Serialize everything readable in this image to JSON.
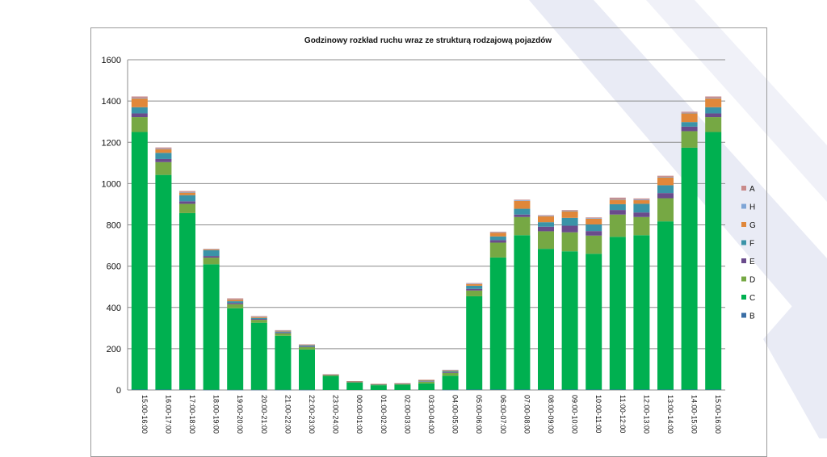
{
  "chart_data": {
    "type": "bar",
    "stacked": true,
    "title": "Godzinowy rozkład ruchu wraz ze strukturą rodzajową pojazdów",
    "ylim": [
      0,
      1600
    ],
    "yticks": [
      0,
      200,
      400,
      600,
      800,
      1000,
      1200,
      1400,
      1600
    ],
    "grid": true,
    "legend_position": "right",
    "categories": [
      "15:00-16:00",
      "16:00-17:00",
      "17:00-18:00",
      "18:00-19:00",
      "19:00-20:00",
      "20:00-21:00",
      "21:00-22:00",
      "22:00-23:00",
      "23:00-24:00",
      "00:00-01:00",
      "01:00-02:00",
      "02:00-03:00",
      "03:00-04:00",
      "04:00-05:00",
      "05:00-06:00",
      "06:00-07:00",
      "07:00-08:00",
      "08:00-09:00",
      "09:00-10:00",
      "10:00-11:00",
      "11:00-12:00",
      "12:00-13:00",
      "13:00-14:00",
      "14:00-15:00",
      "15:00-16:00"
    ],
    "series": [
      {
        "name": "B",
        "color": "#3a6ea5",
        "values": [
          2,
          2,
          2,
          1,
          1,
          1,
          1,
          1,
          0,
          0,
          0,
          0,
          0,
          1,
          2,
          2,
          2,
          2,
          2,
          2,
          2,
          2,
          2,
          2,
          2
        ]
      },
      {
        "name": "C",
        "color": "#00b050",
        "values": [
          1248,
          1040,
          855,
          608,
          395,
          325,
          262,
          195,
          68,
          36,
          23,
          26,
          32,
          68,
          452,
          640,
          748,
          682,
          670,
          658,
          740,
          748,
          815,
          1172,
          1248
        ]
      },
      {
        "name": "D",
        "color": "#76a844",
        "values": [
          72,
          62,
          45,
          32,
          20,
          14,
          12,
          12,
          4,
          3,
          3,
          3,
          8,
          14,
          28,
          72,
          88,
          85,
          92,
          88,
          108,
          88,
          112,
          80,
          72
        ]
      },
      {
        "name": "E",
        "color": "#6a4b8c",
        "values": [
          18,
          15,
          12,
          8,
          6,
          4,
          4,
          3,
          1,
          1,
          1,
          1,
          2,
          3,
          8,
          12,
          12,
          22,
          32,
          22,
          22,
          22,
          25,
          22,
          18
        ]
      },
      {
        "name": "F",
        "color": "#3a93a8",
        "values": [
          30,
          30,
          30,
          28,
          8,
          5,
          4,
          4,
          1,
          1,
          1,
          1,
          3,
          5,
          15,
          18,
          28,
          22,
          38,
          32,
          28,
          42,
          38,
          22,
          30
        ]
      },
      {
        "name": "G",
        "color": "#e0873a",
        "values": [
          42,
          18,
          12,
          4,
          8,
          5,
          3,
          3,
          1,
          1,
          1,
          1,
          3,
          4,
          8,
          18,
          38,
          28,
          32,
          28,
          22,
          18,
          38,
          42,
          42
        ]
      },
      {
        "name": "H",
        "color": "#7ea5d6",
        "values": [
          3,
          3,
          3,
          1,
          1,
          1,
          1,
          1,
          0,
          0,
          0,
          0,
          0,
          1,
          2,
          2,
          3,
          3,
          3,
          3,
          3,
          3,
          3,
          3,
          3
        ]
      },
      {
        "name": "A",
        "color": "#c98a8a",
        "values": [
          7,
          5,
          5,
          2,
          5,
          3,
          3,
          2,
          1,
          1,
          1,
          1,
          2,
          2,
          3,
          3,
          3,
          3,
          3,
          3,
          7,
          5,
          5,
          5,
          7
        ]
      }
    ]
  }
}
